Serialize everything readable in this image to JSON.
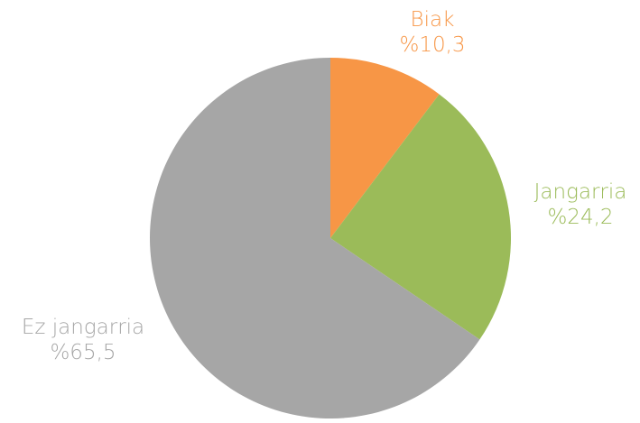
{
  "chart_data": {
    "type": "pie",
    "slices": [
      {
        "name": "Biak",
        "value": 10.3,
        "label": "%10,3",
        "color": "#f79646"
      },
      {
        "name": "Jangarria",
        "value": 24.2,
        "label": "%24,2",
        "color": "#9bbb59"
      },
      {
        "name": "Ez jangarria",
        "value": 65.5,
        "label": "%65,5",
        "color": "#a6a6a6"
      }
    ],
    "start_angle": "top",
    "direction": "clockwise",
    "legend": "none"
  }
}
